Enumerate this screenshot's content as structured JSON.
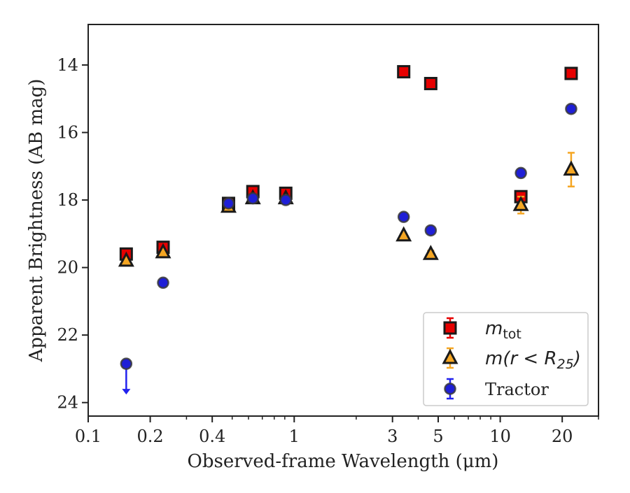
{
  "chart_data": {
    "type": "scatter",
    "xscale": "log",
    "xlim": [
      0.1,
      30
    ],
    "ylim": [
      24.4,
      12.8
    ],
    "y_inverted": true,
    "xlabel": "Observed-frame Wavelength (μm)",
    "ylabel": "Apparent Brightness (AB mag)",
    "x_ticks": [
      {
        "value": 0.1,
        "label": "0.1"
      },
      {
        "value": 0.2,
        "label": "0.2"
      },
      {
        "value": 0.4,
        "label": "0.4"
      },
      {
        "value": 1,
        "label": "1"
      },
      {
        "value": 3,
        "label": "3"
      },
      {
        "value": 5,
        "label": "5"
      },
      {
        "value": 10,
        "label": "10"
      },
      {
        "value": 20,
        "label": "20"
      }
    ],
    "x_minor_ticks": [
      0.3,
      0.5,
      0.6,
      0.7,
      0.8,
      0.9,
      2,
      4,
      6,
      7,
      8,
      9,
      30
    ],
    "y_ticks": [
      {
        "value": 14,
        "label": "14"
      },
      {
        "value": 16,
        "label": "16"
      },
      {
        "value": 18,
        "label": "18"
      },
      {
        "value": 20,
        "label": "20"
      },
      {
        "value": 22,
        "label": "22"
      },
      {
        "value": 24,
        "label": "24"
      }
    ],
    "grid": false,
    "legend_position": "lower-right",
    "series": [
      {
        "name": "m_tot",
        "legend_text": {
          "base": "m",
          "sub": "tot"
        },
        "marker": "square",
        "color": "#e60000",
        "edge": "#1a1a1a",
        "errcolor": "#e60000",
        "x": [
          0.153,
          0.231,
          0.48,
          0.63,
          0.91,
          3.4,
          4.6,
          12.6,
          22.1
        ],
        "y": [
          19.6,
          19.4,
          18.1,
          17.75,
          17.8,
          14.2,
          14.55,
          17.9,
          14.25
        ],
        "yerr": [
          0.05,
          0.05,
          0.05,
          0.1,
          0.1,
          0.05,
          0.05,
          0.05,
          0.05
        ]
      },
      {
        "name": "m(r<R25)",
        "legend_text": {
          "base": "m(r < R",
          "sub": "25",
          "tail": ")"
        },
        "marker": "triangle",
        "color": "#f5a623",
        "edge": "#1a1a1a",
        "errcolor": "#f5a623",
        "x": [
          0.153,
          0.231,
          0.48,
          0.63,
          0.91,
          3.4,
          4.6,
          12.6,
          22.1
        ],
        "y": [
          19.8,
          19.55,
          18.2,
          17.95,
          17.95,
          19.05,
          19.6,
          18.15,
          17.1
        ],
        "yerr": [
          0.05,
          0.05,
          0.1,
          0.05,
          0.05,
          0.05,
          0.1,
          0.25,
          0.5
        ]
      },
      {
        "name": "Tractor",
        "legend_text": {
          "base": "Tractor"
        },
        "marker": "circle",
        "color": "#1f1fd6",
        "edge": "#3a3a3a",
        "errcolor": "#2222ee",
        "x": [
          0.153,
          0.231,
          0.48,
          0.63,
          0.91,
          3.4,
          4.6,
          12.6,
          22.1
        ],
        "y": [
          22.85,
          20.45,
          18.1,
          17.95,
          18.0,
          18.5,
          18.9,
          17.2,
          15.3
        ],
        "yerr": [
          0.05,
          0.05,
          0.05,
          0.05,
          0.05,
          0.05,
          0.05,
          0.05,
          0.05
        ],
        "upper_limit": [
          true,
          false,
          false,
          false,
          false,
          false,
          false,
          false,
          false
        ]
      }
    ]
  }
}
